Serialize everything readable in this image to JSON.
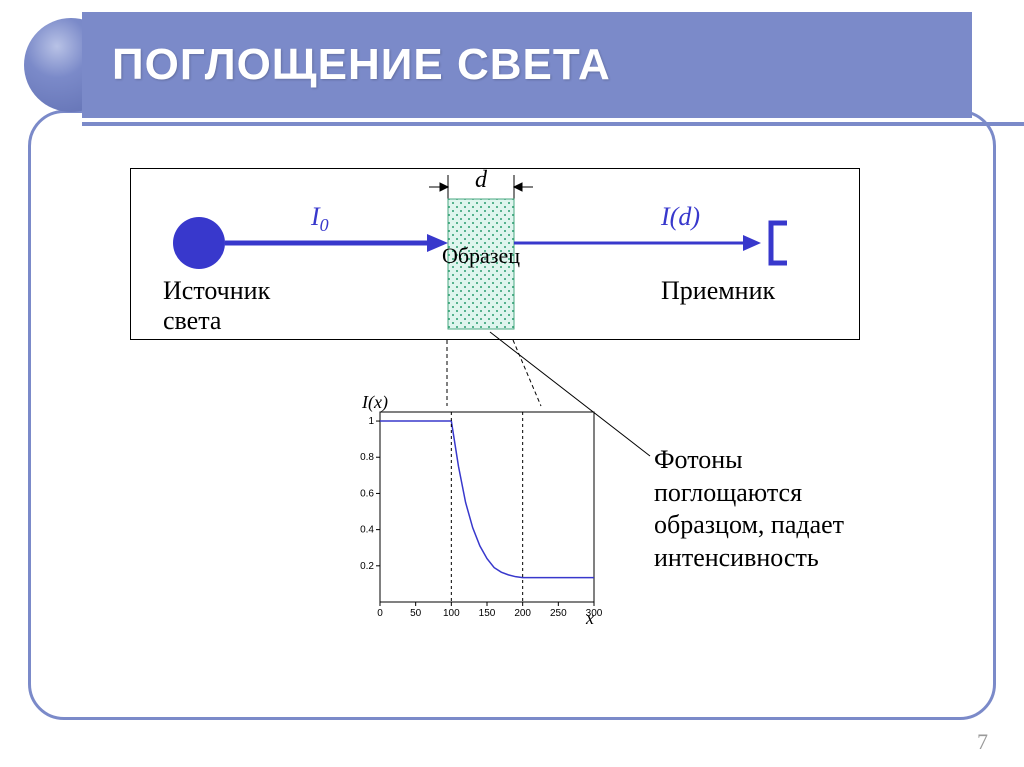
{
  "slide": {
    "title": "ПОГЛОЩЕНИЕ    СВЕТА",
    "page_number": "7"
  },
  "diagram": {
    "labels": {
      "width_d": "d",
      "i0": "I",
      "i0_sub": "0",
      "id": "I(d)",
      "sample": "Образец",
      "source_line1": "Источник",
      "source_line2": "света",
      "receiver": "Приемник"
    },
    "colors": {
      "source_circle": "#3838cc",
      "arrow": "#3838cc",
      "receiver": "#3838cc",
      "sample_fill": "#dff5ee",
      "sample_dots": "#2a9d6f",
      "box_border": "#000000",
      "dim_lines": "#000000"
    }
  },
  "chart": {
    "type": "line",
    "y_label": "I(x)",
    "x_label": "x",
    "xlim": [
      0,
      300
    ],
    "ylim": [
      0,
      1.05
    ],
    "x_ticks": [
      0,
      50,
      100,
      150,
      200,
      250,
      300
    ],
    "y_ticks": [
      0.2,
      0.4,
      0.6,
      0.8,
      1
    ],
    "y_tick_labels": [
      "0.2",
      "0.4",
      "0.6",
      "0.8",
      "1"
    ],
    "line_color": "#3838cc",
    "tick_color": "#000000",
    "tick_fontsize": 10,
    "label_fontsize": 18,
    "data": [
      {
        "x": 0,
        "y": 1.0
      },
      {
        "x": 100,
        "y": 1.0
      },
      {
        "x": 110,
        "y": 0.75
      },
      {
        "x": 120,
        "y": 0.55
      },
      {
        "x": 130,
        "y": 0.41
      },
      {
        "x": 140,
        "y": 0.31
      },
      {
        "x": 150,
        "y": 0.24
      },
      {
        "x": 160,
        "y": 0.19
      },
      {
        "x": 170,
        "y": 0.165
      },
      {
        "x": 180,
        "y": 0.15
      },
      {
        "x": 190,
        "y": 0.14
      },
      {
        "x": 200,
        "y": 0.135
      },
      {
        "x": 300,
        "y": 0.135
      }
    ]
  },
  "annotation": {
    "line1": "Фотоны",
    "line2": "поглощаются",
    "line3": "образцом, падает",
    "line4": "интенсивность"
  }
}
